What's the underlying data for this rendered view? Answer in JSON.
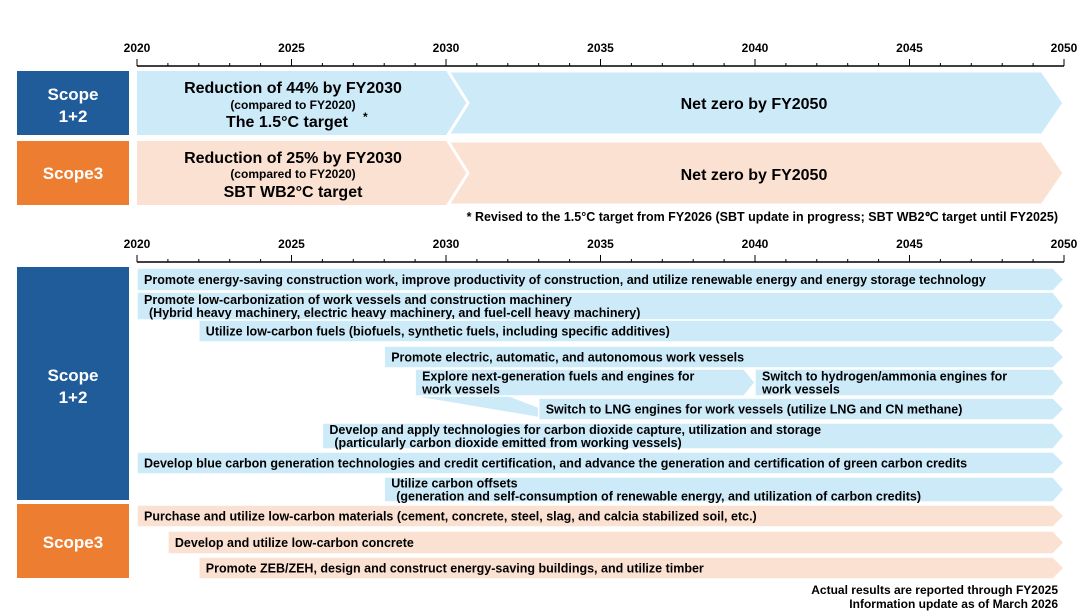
{
  "colors": {
    "scope12": "#1f5c99",
    "scope3": "#ed7d31",
    "blue_band": "#cdeaf9",
    "orange_band": "#fbe1d2"
  },
  "timeline": {
    "ticks": [
      "2020",
      "2025",
      "2030",
      "2035",
      "2040",
      "2045",
      "2050"
    ]
  },
  "targets": {
    "scope12": {
      "label_line1": "Scope",
      "label_line2": "1+2",
      "phase1_title": "Reduction of 44% by FY2030",
      "phase1_sub": "(compared to FY2020)",
      "phase1_target": "The 1.5°C target",
      "phase1_mark": "*",
      "phase2_title": "Net zero by FY2050"
    },
    "scope3": {
      "label": "Scope3",
      "phase1_title": "Reduction of 25% by FY2030",
      "phase1_sub": "(compared to FY2020)",
      "phase1_target": "SBT WB2°C target",
      "phase2_title": "Net zero by FY2050"
    },
    "footnote": "* Revised to the 1.5°C target from FY2026 (SBT update in progress; SBT WB2℃ target until FY2025)"
  },
  "initiatives": {
    "scope12": {
      "label_line1": "Scope",
      "label_line2": "1+2",
      "items": [
        {
          "start": 2020,
          "end": 2050,
          "lines": [
            "Promote energy-saving construction work, improve productivity of construction, and utilize renewable energy and energy storage technology"
          ]
        },
        {
          "start": 2020,
          "end": 2050,
          "lines": [
            "Promote low-carbonization of work vessels and construction machinery",
            "(Hybrid heavy machinery, electric heavy machinery, and fuel-cell heavy machinery)"
          ]
        },
        {
          "start": 2022,
          "end": 2050,
          "lines": [
            "Utilize low-carbon fuels (biofuels, synthetic fuels, including specific additives)"
          ]
        },
        {
          "start": 2028,
          "end": 2050,
          "lines": [
            "Promote electric, automatic, and autonomous work vessels"
          ]
        },
        {
          "start": 2029,
          "end": 2040,
          "lines": [
            "Explore next-generation fuels and engines for",
            "work vessels"
          ]
        },
        {
          "start": 2040,
          "end": 2050,
          "lines": [
            "Switch to hydrogen/ammonia engines for",
            "work vessels"
          ]
        },
        {
          "start": 2033,
          "end": 2050,
          "lines": [
            "Switch to LNG engines for work vessels (utilize LNG and CN methane)"
          ]
        },
        {
          "start": 2026,
          "end": 2050,
          "lines": [
            "Develop and apply technologies for carbon dioxide capture, utilization and storage",
            "(particularly carbon dioxide emitted from working vessels)"
          ]
        },
        {
          "start": 2020,
          "end": 2050,
          "lines": [
            "Develop blue carbon generation technologies and credit certification, and advance the generation and certification of green carbon credits"
          ]
        },
        {
          "start": 2028,
          "end": 2050,
          "lines": [
            "Utilize carbon offsets",
            "(generation and self-consumption of renewable energy, and utilization of carbon credits)"
          ]
        }
      ]
    },
    "scope3": {
      "label": "Scope3",
      "items": [
        {
          "start": 2020,
          "end": 2050,
          "lines": [
            "Purchase and utilize low-carbon materials (cement, concrete, steel, slag, and calcia stabilized soil, etc.)"
          ]
        },
        {
          "start": 2021,
          "end": 2050,
          "lines": [
            "Develop and utilize low-carbon concrete"
          ]
        },
        {
          "start": 2022,
          "end": 2050,
          "lines": [
            "Promote ZEB/ZEH, design and construct energy-saving buildings, and utilize timber"
          ]
        }
      ]
    }
  },
  "footer": {
    "line1": "Actual results are reported through FY2025",
    "line2": "Information update as of March 2026"
  }
}
